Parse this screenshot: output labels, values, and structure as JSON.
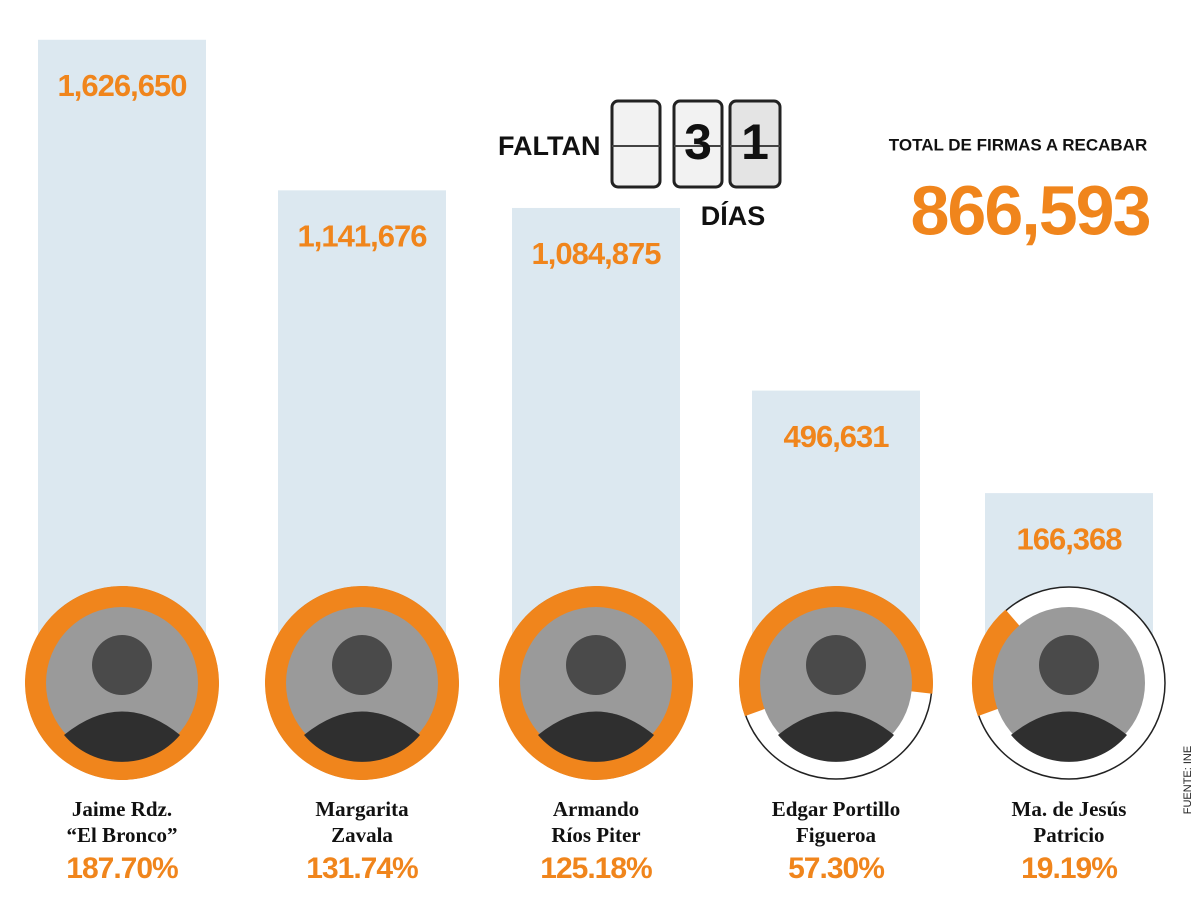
{
  "chart_data": {
    "type": "bar",
    "categories": [
      "Jaime Rdz.\n“El Bronco”",
      "Margarita\nZavala",
      "Armando\nRíos Piter",
      "Edgar Portillo\nFigueroa",
      "Ma. de Jesús\nPatricio"
    ],
    "values": [
      1626650,
      1141676,
      1084875,
      496631,
      166368
    ],
    "value_labels": [
      "1,626,650",
      "1,141,676",
      "1,084,875",
      "496,631",
      "166,368"
    ],
    "percent": [
      187.7,
      131.74,
      125.18,
      57.3,
      19.19
    ],
    "percent_labels": [
      "187.70%",
      "131.74%",
      "125.18%",
      "57.30%",
      "19.19%"
    ],
    "color": "#dce8f0",
    "ring_color": "#f0851c",
    "ylim": [
      -500000,
      1700000
    ],
    "countdown_prefix": "FALTAN",
    "countdown_digits": [
      "3",
      "1"
    ],
    "countdown_suffix": "DÍAS",
    "total_title": "TOTAL DE FIRMAS A RECABAR",
    "total": 866593,
    "total_label": "866,593",
    "source": "FUENTE: INE"
  }
}
